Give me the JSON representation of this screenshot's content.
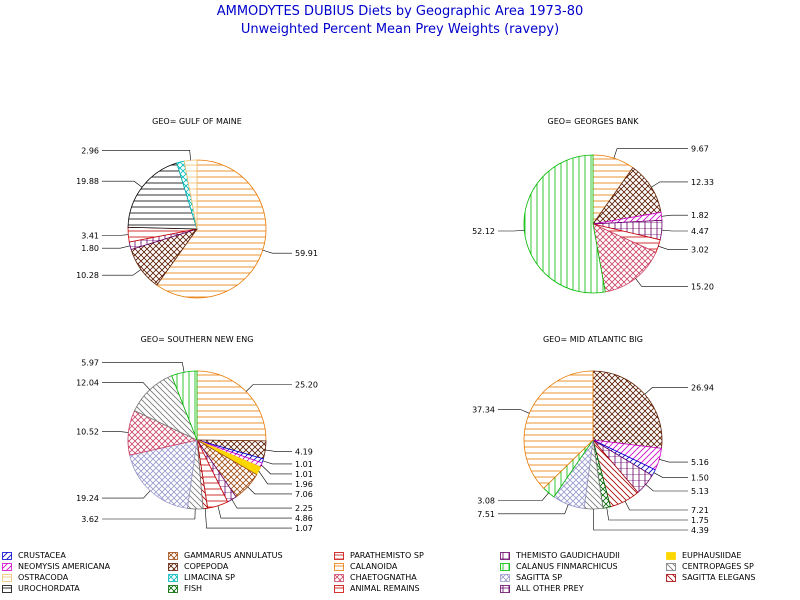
{
  "title": "AMMODYTES DUBIUS Diets by Geographic Area 1973-80",
  "subtitle": "Unweighted Percent Mean Prey Weights (ravepy)",
  "categories": [
    {
      "key": "crustacea",
      "label": "CRUSTACEA",
      "color": "#0000cc",
      "pattern": "diag1"
    },
    {
      "key": "gammarus",
      "label": "GAMMARUS ANNULATUS",
      "color": "#a04a10",
      "pattern": "cross-diag"
    },
    {
      "key": "parathemisto",
      "label": "PARATHEMISTO SP",
      "color": "#cc0000",
      "pattern": "box-h"
    },
    {
      "key": "themisto",
      "label": "THEMISTO GAUDICHAUDII",
      "color": "#660066",
      "pattern": "vert-box"
    },
    {
      "key": "euphausiidae",
      "label": "EUPHAUSIIDAE",
      "color": "#ffd700",
      "pattern": "solid"
    },
    {
      "key": "neomysis",
      "label": "NEOMYSIS AMERICANA",
      "color": "#cc00cc",
      "pattern": "diag1"
    },
    {
      "key": "copepoda",
      "label": "COPEPODA",
      "color": "#5a1a00",
      "pattern": "cross-diag"
    },
    {
      "key": "calanoida",
      "label": "CALANOIDA",
      "color": "#e87800",
      "pattern": "horiz"
    },
    {
      "key": "calanus",
      "label": "CALANUS FINMARCHICUS",
      "color": "#00bb00",
      "pattern": "vert"
    },
    {
      "key": "centropages",
      "label": "CENTROPAGES SP",
      "color": "#777777",
      "pattern": "diag2"
    },
    {
      "key": "ostracoda",
      "label": "OSTRACODA",
      "color": "#f0c070",
      "pattern": "horiz"
    },
    {
      "key": "limacina",
      "label": "LIMACINA SP",
      "color": "#00bbbb",
      "pattern": "cross-diag"
    },
    {
      "key": "chaetognatha",
      "label": "CHAETOGNATHA",
      "color": "#cc4466",
      "pattern": "cross-diag"
    },
    {
      "key": "sagitta",
      "label": "SAGITTA SP",
      "color": "#9999cc",
      "pattern": "cross-diag"
    },
    {
      "key": "sagitta_elegans",
      "label": "SAGITTA ELEGANS",
      "color": "#aa0000",
      "pattern": "diag2"
    },
    {
      "key": "urochordata",
      "label": "UROCHORDATA",
      "color": "#000000",
      "pattern": "horiz"
    },
    {
      "key": "fish",
      "label": "FISH",
      "color": "#006600",
      "pattern": "cross-diag"
    },
    {
      "key": "animal",
      "label": "ANIMAL REMAINS",
      "color": "#cc0000",
      "pattern": "horiz"
    },
    {
      "key": "other",
      "label": "ALL OTHER PREY",
      "color": "#660066",
      "pattern": "grid"
    }
  ],
  "chart_data": [
    {
      "type": "pie",
      "title": "GEO= GULF OF MAINE",
      "slices": [
        {
          "category": "calanoida",
          "value": 59.91,
          "label": "59.91"
        },
        {
          "category": "copepoda",
          "value": 10.28,
          "label": "10.28"
        },
        {
          "category": "themisto",
          "value": 1.8,
          "label": "1.80"
        },
        {
          "category": "animal",
          "value": 3.41,
          "label": "3.41"
        },
        {
          "category": "urochordata",
          "value": 19.88,
          "label": "19.88"
        },
        {
          "category": "limacina",
          "value": 1.76,
          "label": ""
        },
        {
          "category": "ostracoda",
          "value": 2.96,
          "label": "2.96"
        }
      ]
    },
    {
      "type": "pie",
      "title": "GEO= GEORGES BANK",
      "slices": [
        {
          "category": "calanoida",
          "value": 9.67,
          "label": "9.67"
        },
        {
          "category": "copepoda",
          "value": 12.33,
          "label": "12.33"
        },
        {
          "category": "neomysis",
          "value": 1.82,
          "label": "1.82"
        },
        {
          "category": "themisto",
          "value": 4.47,
          "label": "4.47"
        },
        {
          "category": "animal",
          "value": 3.02,
          "label": "3.02"
        },
        {
          "category": "chaetognatha",
          "value": 15.2,
          "label": "15.20"
        },
        {
          "category": "calanus",
          "value": 52.12,
          "label": "52.12"
        }
      ]
    },
    {
      "type": "pie",
      "title": "GEO= SOUTHERN NEW ENG",
      "slices": [
        {
          "category": "calanoida",
          "value": 25.2,
          "label": "25.20"
        },
        {
          "category": "copepoda",
          "value": 4.19,
          "label": "4.19"
        },
        {
          "category": "crustacea",
          "value": 1.01,
          "label": "1.01"
        },
        {
          "category": "neomysis",
          "value": 1.01,
          "label": "1.01"
        },
        {
          "category": "euphausiidae",
          "value": 1.96,
          "label": "1.96"
        },
        {
          "category": "gammarus",
          "value": 7.06,
          "label": "7.06"
        },
        {
          "category": "themisto",
          "value": 2.25,
          "label": "2.25"
        },
        {
          "category": "animal",
          "value": 4.86,
          "label": "4.86"
        },
        {
          "category": "sagitta_elegans",
          "value": 1.07,
          "label": "1.07"
        },
        {
          "category": "centropages",
          "value": 3.62,
          "label": "3.62"
        },
        {
          "category": "sagitta",
          "value": 19.24,
          "label": "19.24"
        },
        {
          "category": "chaetognatha",
          "value": 10.52,
          "label": "10.52"
        },
        {
          "category": "centropages",
          "value": 12.04,
          "label": "12.04"
        },
        {
          "category": "calanus",
          "value": 5.97,
          "label": "5.97"
        }
      ]
    },
    {
      "type": "pie",
      "title": "GEO= MID ATLANTIC BIG",
      "slices": [
        {
          "category": "copepoda",
          "value": 26.94,
          "label": "26.94"
        },
        {
          "category": "neomysis",
          "value": 5.16,
          "label": "5.16"
        },
        {
          "category": "crustacea",
          "value": 1.5,
          "label": "1.50"
        },
        {
          "category": "themisto",
          "value": 5.13,
          "label": "5.13"
        },
        {
          "category": "sagitta_elegans",
          "value": 7.21,
          "label": "7.21"
        },
        {
          "category": "fish",
          "value": 1.75,
          "label": "1.75"
        },
        {
          "category": "centropages",
          "value": 4.39,
          "label": "4.39"
        },
        {
          "category": "sagitta",
          "value": 7.51,
          "label": "7.51"
        },
        {
          "category": "calanus",
          "value": 3.08,
          "label": "3.08"
        },
        {
          "category": "calanoida",
          "value": 37.34,
          "label": "37.34"
        }
      ]
    }
  ]
}
